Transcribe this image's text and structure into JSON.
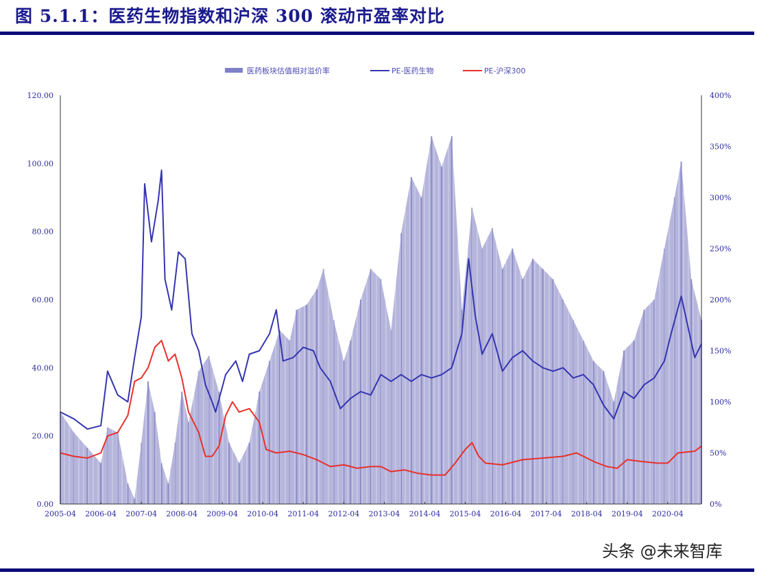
{
  "title": "图 5.1.1：医药生物指数和沪深 300 滚动市盈率对比",
  "watermark": "头条 @未来智库",
  "chart_data": {
    "type": "bar+line",
    "title": "",
    "legend_position": "top",
    "grid": false,
    "x_range": [
      "2005-04",
      "2021-02"
    ],
    "x_ticks": [
      "2005-04",
      "2006-04",
      "2007-04",
      "2008-04",
      "2009-04",
      "2010-04",
      "2011-04",
      "2012-04",
      "2013-04",
      "2014-04",
      "2015-04",
      "2016-04",
      "2017-04",
      "2018-04",
      "2019-04",
      "2020-04"
    ],
    "y_left": {
      "range": [
        0,
        120
      ],
      "ticks": [
        "0.00",
        "20.00",
        "40.00",
        "60.00",
        "80.00",
        "100.00",
        "120.00"
      ]
    },
    "y_right": {
      "range": [
        0,
        400
      ],
      "ticks": [
        "0%",
        "50%",
        "100%",
        "150%",
        "200%",
        "250%",
        "300%",
        "350%",
        "400%"
      ]
    },
    "colors": {
      "premium": "#9c9cd0",
      "pe_pharma": "#3434b0",
      "pe_hs300": "#e8302a"
    },
    "series": [
      {
        "name": "医药板块估值相对溢价率",
        "type": "bar",
        "axis": "right",
        "points": [
          [
            "2005-04",
            90
          ],
          [
            "2005-08",
            70
          ],
          [
            "2005-12",
            55
          ],
          [
            "2006-04",
            40
          ],
          [
            "2006-06",
            75
          ],
          [
            "2006-09",
            70
          ],
          [
            "2006-12",
            20
          ],
          [
            "2007-02",
            5
          ],
          [
            "2007-04",
            60
          ],
          [
            "2007-06",
            120
          ],
          [
            "2007-08",
            90
          ],
          [
            "2007-10",
            40
          ],
          [
            "2007-12",
            20
          ],
          [
            "2008-02",
            60
          ],
          [
            "2008-04",
            110
          ],
          [
            "2008-06",
            80
          ],
          [
            "2008-09",
            130
          ],
          [
            "2008-12",
            145
          ],
          [
            "2009-03",
            110
          ],
          [
            "2009-06",
            60
          ],
          [
            "2009-09",
            40
          ],
          [
            "2009-12",
            60
          ],
          [
            "2010-03",
            110
          ],
          [
            "2010-06",
            140
          ],
          [
            "2010-09",
            170
          ],
          [
            "2010-12",
            160
          ],
          [
            "2011-02",
            190
          ],
          [
            "2011-05",
            195
          ],
          [
            "2011-08",
            210
          ],
          [
            "2011-10",
            230
          ],
          [
            "2012-01",
            180
          ],
          [
            "2012-04",
            140
          ],
          [
            "2012-06",
            160
          ],
          [
            "2012-09",
            200
          ],
          [
            "2012-12",
            230
          ],
          [
            "2013-03",
            220
          ],
          [
            "2013-06",
            170
          ],
          [
            "2013-09",
            265
          ],
          [
            "2013-12",
            320
          ],
          [
            "2014-03",
            300
          ],
          [
            "2014-06",
            360
          ],
          [
            "2014-09",
            330
          ],
          [
            "2014-12",
            360
          ],
          [
            "2015-03",
            190
          ],
          [
            "2015-06",
            290
          ],
          [
            "2015-09",
            250
          ],
          [
            "2015-12",
            270
          ],
          [
            "2016-03",
            230
          ],
          [
            "2016-06",
            250
          ],
          [
            "2016-09",
            220
          ],
          [
            "2016-12",
            240
          ],
          [
            "2017-03",
            230
          ],
          [
            "2017-06",
            220
          ],
          [
            "2017-09",
            200
          ],
          [
            "2017-12",
            180
          ],
          [
            "2018-03",
            160
          ],
          [
            "2018-06",
            140
          ],
          [
            "2018-09",
            130
          ],
          [
            "2018-12",
            100
          ],
          [
            "2019-03",
            150
          ],
          [
            "2019-06",
            160
          ],
          [
            "2019-09",
            190
          ],
          [
            "2019-12",
            200
          ],
          [
            "2020-03",
            250
          ],
          [
            "2020-06",
            300
          ],
          [
            "2020-08",
            335
          ],
          [
            "2020-11",
            220
          ],
          [
            "2021-02",
            180
          ]
        ]
      },
      {
        "name": "PE-医药生物",
        "type": "line",
        "axis": "left",
        "points": [
          [
            "2005-04",
            27
          ],
          [
            "2005-08",
            25
          ],
          [
            "2005-12",
            22
          ],
          [
            "2006-04",
            23
          ],
          [
            "2006-06",
            39
          ],
          [
            "2006-09",
            32
          ],
          [
            "2006-12",
            30
          ],
          [
            "2007-02",
            43
          ],
          [
            "2007-04",
            55
          ],
          [
            "2007-05",
            94
          ],
          [
            "2007-07",
            77
          ],
          [
            "2007-09",
            89
          ],
          [
            "2007-10",
            98
          ],
          [
            "2007-11",
            66
          ],
          [
            "2008-01",
            57
          ],
          [
            "2008-03",
            74
          ],
          [
            "2008-05",
            72
          ],
          [
            "2008-07",
            50
          ],
          [
            "2008-09",
            45
          ],
          [
            "2008-11",
            35
          ],
          [
            "2009-01",
            30
          ],
          [
            "2009-02",
            27
          ],
          [
            "2009-05",
            38
          ],
          [
            "2009-08",
            42
          ],
          [
            "2009-10",
            36
          ],
          [
            "2009-12",
            44
          ],
          [
            "2010-03",
            45
          ],
          [
            "2010-06",
            50
          ],
          [
            "2010-08",
            57
          ],
          [
            "2010-10",
            42
          ],
          [
            "2011-01",
            43
          ],
          [
            "2011-04",
            46
          ],
          [
            "2011-07",
            45
          ],
          [
            "2011-09",
            40
          ],
          [
            "2011-12",
            36
          ],
          [
            "2012-03",
            28
          ],
          [
            "2012-06",
            31
          ],
          [
            "2012-09",
            33
          ],
          [
            "2012-12",
            32
          ],
          [
            "2013-03",
            38
          ],
          [
            "2013-06",
            36
          ],
          [
            "2013-09",
            38
          ],
          [
            "2013-12",
            36
          ],
          [
            "2014-03",
            38
          ],
          [
            "2014-06",
            37
          ],
          [
            "2014-09",
            38
          ],
          [
            "2014-12",
            40
          ],
          [
            "2015-03",
            50
          ],
          [
            "2015-05",
            72
          ],
          [
            "2015-07",
            55
          ],
          [
            "2015-09",
            44
          ],
          [
            "2015-12",
            50
          ],
          [
            "2016-03",
            39
          ],
          [
            "2016-06",
            43
          ],
          [
            "2016-09",
            45
          ],
          [
            "2016-12",
            42
          ],
          [
            "2017-03",
            40
          ],
          [
            "2017-06",
            39
          ],
          [
            "2017-09",
            40
          ],
          [
            "2017-12",
            37
          ],
          [
            "2018-03",
            38
          ],
          [
            "2018-06",
            35
          ],
          [
            "2018-09",
            29
          ],
          [
            "2018-12",
            25
          ],
          [
            "2019-03",
            33
          ],
          [
            "2019-06",
            31
          ],
          [
            "2019-09",
            35
          ],
          [
            "2019-12",
            37
          ],
          [
            "2020-03",
            42
          ],
          [
            "2020-05",
            50
          ],
          [
            "2020-08",
            61
          ],
          [
            "2020-10",
            52
          ],
          [
            "2020-12",
            43
          ],
          [
            "2021-02",
            47
          ]
        ]
      },
      {
        "name": "PE-沪深300",
        "type": "line",
        "axis": "left",
        "points": [
          [
            "2005-04",
            15
          ],
          [
            "2005-08",
            14
          ],
          [
            "2005-12",
            13.5
          ],
          [
            "2006-04",
            15
          ],
          [
            "2006-06",
            20
          ],
          [
            "2006-09",
            21
          ],
          [
            "2006-12",
            26
          ],
          [
            "2007-02",
            36
          ],
          [
            "2007-04",
            37
          ],
          [
            "2007-06",
            40
          ],
          [
            "2007-08",
            46
          ],
          [
            "2007-10",
            48
          ],
          [
            "2007-12",
            42
          ],
          [
            "2008-02",
            44
          ],
          [
            "2008-04",
            37
          ],
          [
            "2008-06",
            27
          ],
          [
            "2008-09",
            21
          ],
          [
            "2008-11",
            14
          ],
          [
            "2009-01",
            14
          ],
          [
            "2009-03",
            17
          ],
          [
            "2009-05",
            26
          ],
          [
            "2009-07",
            30
          ],
          [
            "2009-09",
            27
          ],
          [
            "2009-12",
            28
          ],
          [
            "2010-03",
            24
          ],
          [
            "2010-05",
            16
          ],
          [
            "2010-08",
            15
          ],
          [
            "2010-12",
            15.5
          ],
          [
            "2011-04",
            14.5
          ],
          [
            "2011-08",
            13
          ],
          [
            "2011-12",
            11
          ],
          [
            "2012-04",
            11.5
          ],
          [
            "2012-08",
            10.5
          ],
          [
            "2012-12",
            11
          ],
          [
            "2013-03",
            11
          ],
          [
            "2013-06",
            9.5
          ],
          [
            "2013-10",
            10
          ],
          [
            "2014-02",
            9
          ],
          [
            "2014-06",
            8.5
          ],
          [
            "2014-10",
            8.5
          ],
          [
            "2015-01",
            12
          ],
          [
            "2015-04",
            16
          ],
          [
            "2015-06",
            18
          ],
          [
            "2015-08",
            14
          ],
          [
            "2015-10",
            12
          ],
          [
            "2016-03",
            11.5
          ],
          [
            "2016-09",
            13
          ],
          [
            "2017-03",
            13.5
          ],
          [
            "2017-09",
            14
          ],
          [
            "2018-01",
            15
          ],
          [
            "2018-06",
            12.5
          ],
          [
            "2018-10",
            11
          ],
          [
            "2019-01",
            10.5
          ],
          [
            "2019-04",
            13
          ],
          [
            "2019-08",
            12.5
          ],
          [
            "2020-01",
            12
          ],
          [
            "2020-04",
            12
          ],
          [
            "2020-07",
            15
          ],
          [
            "2020-12",
            15.5
          ],
          [
            "2021-02",
            17
          ]
        ]
      }
    ]
  }
}
